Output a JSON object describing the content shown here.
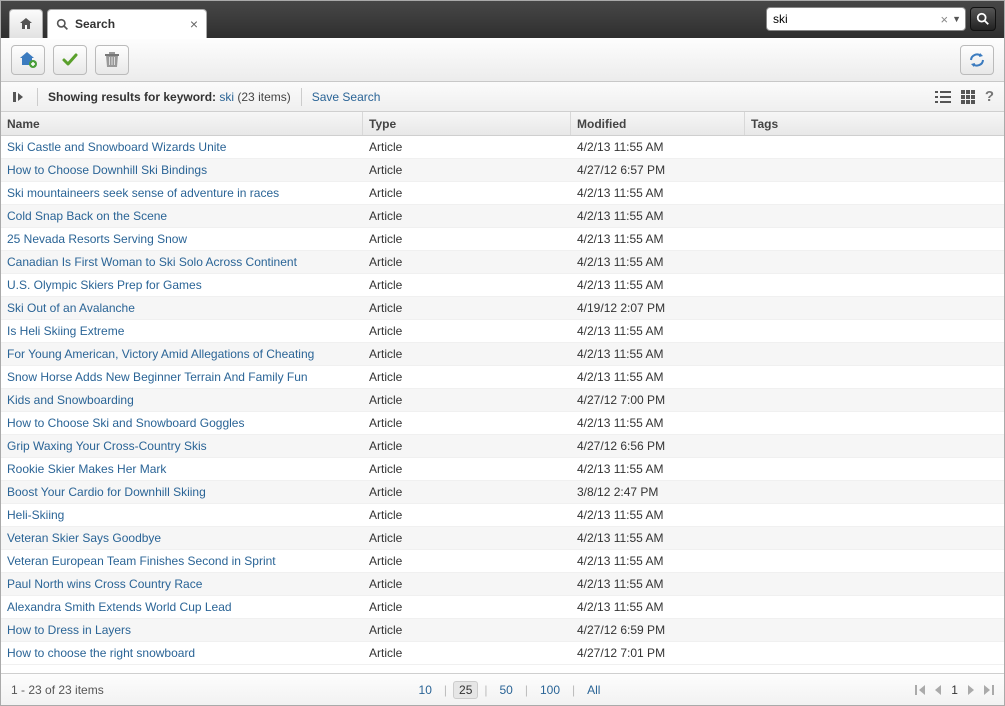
{
  "tab": {
    "title": "Search"
  },
  "search": {
    "value": "ski"
  },
  "info": {
    "label_prefix": "Showing results for keyword:",
    "keyword": "ski",
    "count_text": "(23 items)",
    "save_label": "Save Search"
  },
  "columns": {
    "name": "Name",
    "type": "Type",
    "modified": "Modified",
    "tags": "Tags"
  },
  "rows": [
    {
      "name": "Ski Castle and Snowboard Wizards Unite",
      "type": "Article",
      "modified": "4/2/13 11:55 AM",
      "tags": ""
    },
    {
      "name": "How to Choose Downhill Ski Bindings",
      "type": "Article",
      "modified": "4/27/12 6:57 PM",
      "tags": ""
    },
    {
      "name": "Ski mountaineers seek sense of adventure in races",
      "type": "Article",
      "modified": "4/2/13 11:55 AM",
      "tags": ""
    },
    {
      "name": "Cold Snap Back on the Scene",
      "type": "Article",
      "modified": "4/2/13 11:55 AM",
      "tags": ""
    },
    {
      "name": "25 Nevada Resorts Serving Snow",
      "type": "Article",
      "modified": "4/2/13 11:55 AM",
      "tags": ""
    },
    {
      "name": "Canadian Is First Woman to Ski Solo Across Continent",
      "type": "Article",
      "modified": "4/2/13 11:55 AM",
      "tags": ""
    },
    {
      "name": "U.S. Olympic Skiers Prep for Games",
      "type": "Article",
      "modified": "4/2/13 11:55 AM",
      "tags": ""
    },
    {
      "name": "Ski Out of an Avalanche",
      "type": "Article",
      "modified": "4/19/12 2:07 PM",
      "tags": ""
    },
    {
      "name": "Is Heli Skiing Extreme",
      "type": "Article",
      "modified": "4/2/13 11:55 AM",
      "tags": ""
    },
    {
      "name": "For Young American, Victory Amid Allegations of Cheating",
      "type": "Article",
      "modified": "4/2/13 11:55 AM",
      "tags": ""
    },
    {
      "name": "Snow Horse Adds New Beginner Terrain And Family Fun",
      "type": "Article",
      "modified": "4/2/13 11:55 AM",
      "tags": ""
    },
    {
      "name": "Kids and Snowboarding",
      "type": "Article",
      "modified": "4/27/12 7:00 PM",
      "tags": ""
    },
    {
      "name": "How to Choose Ski and Snowboard Goggles",
      "type": "Article",
      "modified": "4/2/13 11:55 AM",
      "tags": ""
    },
    {
      "name": "Grip Waxing Your Cross-Country Skis",
      "type": "Article",
      "modified": "4/27/12 6:56 PM",
      "tags": ""
    },
    {
      "name": "Rookie Skier Makes Her Mark",
      "type": "Article",
      "modified": "4/2/13 11:55 AM",
      "tags": ""
    },
    {
      "name": "Boost Your Cardio for Downhill Skiing",
      "type": "Article",
      "modified": "3/8/12 2:47 PM",
      "tags": ""
    },
    {
      "name": "Heli-Skiing",
      "type": "Article",
      "modified": "4/2/13 11:55 AM",
      "tags": ""
    },
    {
      "name": "Veteran Skier Says Goodbye",
      "type": "Article",
      "modified": "4/2/13 11:55 AM",
      "tags": ""
    },
    {
      "name": "Veteran European Team Finishes Second in Sprint",
      "type": "Article",
      "modified": "4/2/13 11:55 AM",
      "tags": ""
    },
    {
      "name": "Paul North wins Cross Country Race",
      "type": "Article",
      "modified": "4/2/13 11:55 AM",
      "tags": ""
    },
    {
      "name": "Alexandra Smith Extends World Cup Lead",
      "type": "Article",
      "modified": "4/2/13 11:55 AM",
      "tags": ""
    },
    {
      "name": "How to Dress in Layers",
      "type": "Article",
      "modified": "4/27/12 6:59 PM",
      "tags": ""
    },
    {
      "name": "How to choose the right snowboard",
      "type": "Article",
      "modified": "4/27/12 7:01 PM",
      "tags": ""
    }
  ],
  "pager": {
    "range_text": "1 - 23 of 23 items",
    "sizes": [
      "10",
      "25",
      "50",
      "100",
      "All"
    ],
    "active_size": "25",
    "current_page": "1"
  },
  "colors": {
    "link": "#2a6496",
    "topbar": "#3a3a3a",
    "row_alt": "#f6f6f6",
    "border": "#cfcfcf"
  }
}
